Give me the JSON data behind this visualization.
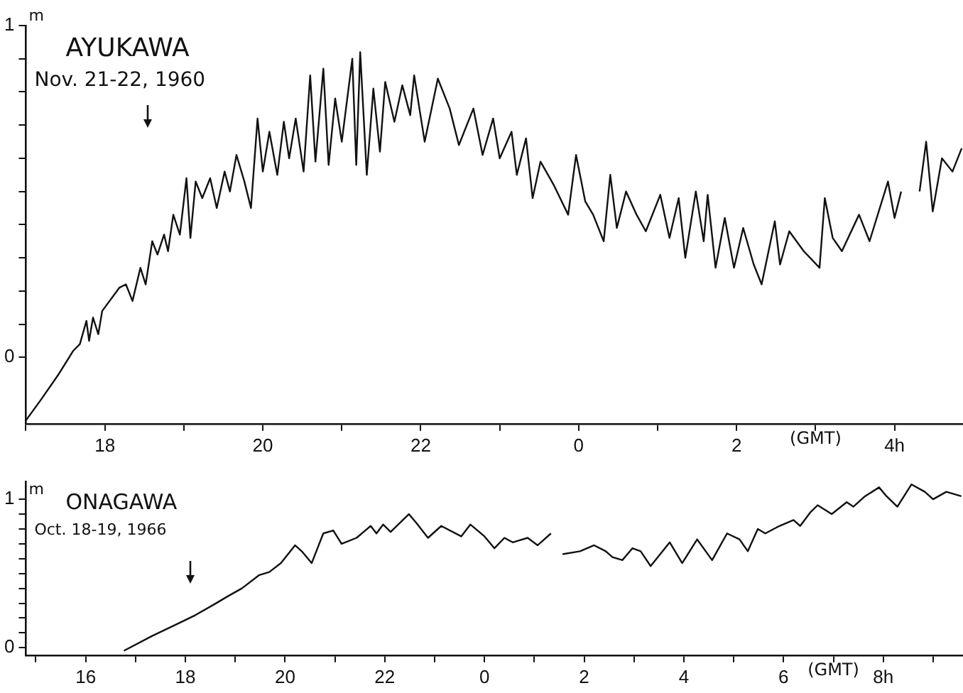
{
  "chart_data": [
    {
      "type": "line",
      "title": "AYUKAWA",
      "subtitle": "Nov. 21-22, 1960",
      "ylabel": "m",
      "annotations": [
        "(GMT)"
      ],
      "xlim": [
        "1960-11-21T17:00",
        "1960-11-22T04:52"
      ],
      "ylim": [
        -0.2,
        1
      ],
      "yticks": [
        {
          "value": 0,
          "label": "0"
        },
        {
          "value": 0.1,
          "label": null
        },
        {
          "value": 0.2,
          "label": null
        },
        {
          "value": 0.3,
          "label": null
        },
        {
          "value": 0.4,
          "label": null
        },
        {
          "value": 0.5,
          "label": null
        },
        {
          "value": 0.6,
          "label": null
        },
        {
          "value": 0.7,
          "label": null
        },
        {
          "value": 0.8,
          "label": null
        },
        {
          "value": 0.9,
          "label": null
        },
        1
      ],
      "xticks": [
        {
          "value": "1960-11-21T17:00",
          "label": null
        },
        {
          "value": "1960-11-21T18:00",
          "label": "18"
        },
        {
          "value": "1960-11-21T19:00",
          "label": null
        },
        {
          "value": "1960-11-21T20:00",
          "label": "20"
        },
        {
          "value": "1960-11-21T21:00",
          "label": null
        },
        {
          "value": "1960-11-21T22:00",
          "label": "22"
        },
        {
          "value": "1960-11-21T23:00",
          "label": null
        },
        {
          "value": "1960-11-22T00:00",
          "label": "0"
        },
        {
          "value": "1960-11-22T01:00",
          "label": null
        },
        {
          "value": "1960-11-22T02:00",
          "label": "2"
        },
        {
          "value": "1960-11-22T03:00",
          "label": null
        },
        {
          "value": "1960-11-22T04:00",
          "label": "4h"
        }
      ],
      "grid": false,
      "legend": false,
      "marker": "none",
      "line_style": "solid",
      "series": [
        {
          "color": "#111111",
          "x": [
            "1960-11-21T17:00",
            "1960-11-21T17:11",
            "1960-11-21T17:25",
            "1960-11-21T17:36",
            "1960-11-21T17:41",
            "1960-11-21T17:46",
            "1960-11-21T17:48",
            "1960-11-21T17:51",
            "1960-11-21T17:55",
            "1960-11-21T17:58",
            "1960-11-21T18:11",
            "1960-11-21T18:16",
            "1960-11-21T18:21",
            "1960-11-21T18:27",
            "1960-11-21T18:31",
            "1960-11-21T18:36",
            "1960-11-21T18:40",
            "1960-11-21T18:45",
            "1960-11-21T18:48",
            "1960-11-21T18:52",
            "1960-11-21T18:57",
            "1960-11-21T19:02",
            "1960-11-21T19:05",
            "1960-11-21T19:09",
            "1960-11-21T19:14",
            "1960-11-21T19:20",
            "1960-11-21T19:25",
            "1960-11-21T19:31",
            "1960-11-21T19:35",
            "1960-11-21T19:40",
            "1960-11-21T19:46",
            "1960-11-21T19:51",
            "1960-11-21T19:56",
            "1960-11-21T20:00",
            "1960-11-21T20:05",
            "1960-11-21T20:11",
            "1960-11-21T20:16",
            "1960-11-21T20:20",
            "1960-11-21T20:25",
            "1960-11-21T20:31",
            "1960-11-21T20:36",
            "1960-11-21T20:40",
            "1960-11-21T20:46",
            "1960-11-21T20:50",
            "1960-11-21T20:55",
            "1960-11-21T21:00",
            "1960-11-21T21:08",
            "1960-11-21T21:11",
            "1960-11-21T21:14",
            "1960-11-21T21:19",
            "1960-11-21T21:24",
            "1960-11-21T21:29",
            "1960-11-21T21:33",
            "1960-11-21T21:40",
            "1960-11-21T21:46",
            "1960-11-21T21:52",
            "1960-11-21T21:55",
            "1960-11-21T22:03",
            "1960-11-21T22:13",
            "1960-11-21T22:22",
            "1960-11-21T22:29",
            "1960-11-21T22:40",
            "1960-11-21T22:47",
            "1960-11-21T22:55",
            "1960-11-21T23:00",
            "1960-11-21T23:09",
            "1960-11-21T23:13",
            "1960-11-21T23:20",
            "1960-11-21T23:25",
            "1960-11-21T23:31",
            "1960-11-21T23:41",
            "1960-11-21T23:52",
            "1960-11-21T23:58",
            "1960-11-22T00:05",
            "1960-11-22T00:11",
            "1960-11-22T00:19",
            "1960-11-22T00:24",
            "1960-11-22T00:29",
            "1960-11-22T00:36",
            "1960-11-22T00:44",
            "1960-11-22T00:51",
            "1960-11-22T01:02",
            "1960-11-22T01:09",
            "1960-11-22T01:16",
            "1960-11-22T01:21",
            "1960-11-22T01:29",
            "1960-11-22T01:35",
            "1960-11-22T01:38",
            "1960-11-22T01:44",
            "1960-11-22T01:51",
            "1960-11-22T01:58",
            "1960-11-22T02:05",
            "1960-11-22T02:13",
            "1960-11-22T02:19",
            "1960-11-22T02:29",
            "1960-11-22T02:33",
            "1960-11-22T02:40",
            "1960-11-22T02:51",
            "1960-11-22T03:03",
            "1960-11-22T03:07",
            "1960-11-22T03:13",
            "1960-11-22T03:20",
            "1960-11-22T03:33",
            "1960-11-22T03:41",
            "1960-11-22T03:55",
            "1960-11-22T04:00",
            "1960-11-22T04:05",
            "1960-11-22T04:12",
            "1960-11-22T04:19",
            "1960-11-22T04:24",
            "1960-11-22T04:29",
            "1960-11-22T04:36",
            "1960-11-22T04:44",
            "1960-11-22T04:51"
          ],
          "values": [
            -0.19,
            -0.13,
            -0.05,
            0.02,
            0.04,
            0.11,
            0.05,
            0.12,
            0.07,
            0.14,
            0.21,
            0.22,
            0.17,
            0.27,
            0.22,
            0.35,
            0.31,
            0.37,
            0.32,
            0.43,
            0.37,
            0.54,
            0.36,
            0.53,
            0.48,
            0.54,
            0.45,
            0.56,
            0.5,
            0.61,
            0.53,
            0.45,
            0.72,
            0.56,
            0.68,
            0.55,
            0.71,
            0.6,
            0.72,
            0.56,
            0.85,
            0.59,
            0.87,
            0.58,
            0.78,
            0.65,
            0.9,
            0.58,
            0.92,
            0.55,
            0.81,
            0.62,
            0.83,
            0.71,
            0.82,
            0.73,
            0.85,
            0.65,
            0.84,
            0.75,
            0.64,
            0.75,
            0.61,
            0.72,
            0.6,
            0.68,
            0.55,
            0.66,
            0.48,
            0.59,
            0.52,
            0.43,
            0.61,
            0.47,
            0.43,
            0.35,
            0.55,
            0.39,
            0.5,
            0.43,
            0.38,
            0.49,
            0.36,
            0.48,
            0.3,
            0.5,
            0.35,
            0.49,
            0.27,
            0.42,
            0.27,
            0.39,
            0.28,
            0.22,
            0.41,
            0.28,
            0.38,
            0.32,
            0.27,
            0.48,
            0.36,
            0.32,
            0.43,
            0.35,
            0.53,
            0.42,
            0.5,
            null,
            0.5,
            0.65,
            0.44,
            0.6,
            0.56,
            0.63
          ]
        }
      ]
    },
    {
      "type": "line",
      "title": "ONAGAWA",
      "subtitle": "Oct. 18-19, 1966",
      "ylabel": "m",
      "annotations": [
        "(GMT)"
      ],
      "xlim": [
        "1966-10-18T14:48",
        "1966-10-19T09:36"
      ],
      "ylim": [
        -0.05,
        1.12
      ],
      "yticks": [
        {
          "value": 0,
          "label": "0"
        },
        {
          "value": 0.1,
          "label": null
        },
        {
          "value": 0.2,
          "label": null
        },
        {
          "value": 0.3,
          "label": null
        },
        {
          "value": 0.4,
          "label": null
        },
        {
          "value": 0.5,
          "label": null
        },
        {
          "value": 0.6,
          "label": null
        },
        {
          "value": 0.7,
          "label": null
        },
        {
          "value": 0.8,
          "label": null
        },
        {
          "value": 0.9,
          "label": null
        },
        1
      ],
      "xticks": [
        {
          "value": "1966-10-18T15:00",
          "label": null
        },
        {
          "value": "1966-10-18T16:00",
          "label": "16"
        },
        {
          "value": "1966-10-18T17:00",
          "label": null
        },
        {
          "value": "1966-10-18T18:00",
          "label": "18"
        },
        {
          "value": "1966-10-18T19:00",
          "label": null
        },
        {
          "value": "1966-10-18T20:00",
          "label": "20"
        },
        {
          "value": "1966-10-18T21:00",
          "label": null
        },
        {
          "value": "1966-10-18T22:00",
          "label": "22"
        },
        {
          "value": "1966-10-18T23:00",
          "label": null
        },
        {
          "value": "1966-10-19T00:00",
          "label": "0"
        },
        {
          "value": "1966-10-19T01:00",
          "label": null
        },
        {
          "value": "1966-10-19T02:00",
          "label": "2"
        },
        {
          "value": "1966-10-19T03:00",
          "label": null
        },
        {
          "value": "1966-10-19T04:00",
          "label": "4"
        },
        {
          "value": "1966-10-19T05:00",
          "label": null
        },
        {
          "value": "1966-10-19T06:00",
          "label": "6"
        },
        {
          "value": "1966-10-19T07:00",
          "label": null
        },
        {
          "value": "1966-10-19T08:00",
          "label": "8h"
        },
        {
          "value": "1966-10-19T09:00",
          "label": null
        }
      ],
      "grid": false,
      "legend": false,
      "marker": "none",
      "line_style": "solid",
      "series": [
        {
          "color": "#111111",
          "x": [
            "1966-10-18T16:46",
            "1966-10-18T17:20",
            "1966-10-18T17:50",
            "1966-10-18T18:12",
            "1966-10-18T18:34",
            "1966-10-18T18:52",
            "1966-10-18T19:08",
            "1966-10-18T19:29",
            "1966-10-18T19:41",
            "1966-10-18T19:55",
            "1966-10-18T20:12",
            "1966-10-18T20:20",
            "1966-10-18T20:32",
            "1966-10-18T20:46",
            "1966-10-18T20:58",
            "1966-10-18T21:08",
            "1966-10-18T21:26",
            "1966-10-18T21:43",
            "1966-10-18T21:50",
            "1966-10-18T21:58",
            "1966-10-18T22:07",
            "1966-10-18T22:29",
            "1966-10-18T22:38",
            "1966-10-18T22:52",
            "1966-10-18T23:08",
            "1966-10-18T23:32",
            "1966-10-18T23:43",
            "1966-10-19T00:00",
            "1966-10-19T00:12",
            "1966-10-19T00:24",
            "1966-10-19T00:34",
            "1966-10-19T00:52",
            "1966-10-19T01:04",
            "1966-10-19T01:20",
            "1966-10-19T01:27",
            "1966-10-19T01:34",
            "1966-10-19T01:55",
            "1966-10-19T02:12",
            "1966-10-19T02:26",
            "1966-10-19T02:34",
            "1966-10-19T02:46",
            "1966-10-19T02:58",
            "1966-10-19T03:08",
            "1966-10-19T03:20",
            "1966-10-19T03:43",
            "1966-10-19T03:58",
            "1966-10-19T04:16",
            "1966-10-19T04:34",
            "1966-10-19T04:52",
            "1966-10-19T05:07",
            "1966-10-19T05:17",
            "1966-10-19T05:29",
            "1966-10-19T05:38",
            "1966-10-19T05:55",
            "1966-10-19T06:12",
            "1966-10-19T06:20",
            "1966-10-19T06:32",
            "1966-10-19T06:41",
            "1966-10-19T06:58",
            "1966-10-19T07:16",
            "1966-10-19T07:24",
            "1966-10-19T07:38",
            "1966-10-19T07:55",
            "1966-10-19T08:04",
            "1966-10-19T08:17",
            "1966-10-19T08:34",
            "1966-10-19T08:50",
            "1966-10-19T09:00",
            "1966-10-19T09:16",
            "1966-10-19T09:34"
          ],
          "values": [
            -0.02,
            0.08,
            0.16,
            0.22,
            0.29,
            0.35,
            0.4,
            0.49,
            0.51,
            0.57,
            0.69,
            0.65,
            0.57,
            0.77,
            0.79,
            0.7,
            0.74,
            0.82,
            0.77,
            0.83,
            0.78,
            0.9,
            0.84,
            0.74,
            0.82,
            0.75,
            0.83,
            0.75,
            0.67,
            0.74,
            0.71,
            0.74,
            0.69,
            0.77,
            null,
            0.63,
            0.65,
            0.69,
            0.65,
            0.61,
            0.59,
            0.67,
            0.65,
            0.55,
            0.71,
            0.57,
            0.73,
            0.59,
            0.77,
            0.73,
            0.65,
            0.8,
            0.77,
            0.82,
            0.86,
            0.82,
            0.91,
            0.96,
            0.9,
            0.98,
            0.95,
            1.02,
            1.08,
            1.02,
            0.95,
            1.1,
            1.05,
            1.0,
            1.05,
            1.02
          ]
        }
      ]
    }
  ]
}
